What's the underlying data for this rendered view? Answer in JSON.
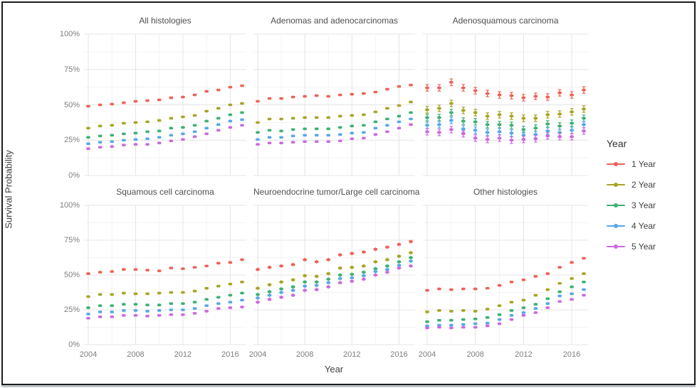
{
  "figure_type": "faceted survival probability pointrange plot",
  "chart_data": {
    "type": "scatter",
    "x": [
      2004,
      2005,
      2006,
      2007,
      2008,
      2009,
      2010,
      2011,
      2012,
      2013,
      2014,
      2015,
      2016,
      2017
    ],
    "xticks": [
      2004,
      2008,
      2012,
      2016
    ],
    "yticks": [
      0,
      25,
      50,
      75,
      100
    ],
    "ytick_labels": [
      "0%",
      "25%",
      "50%",
      "75%",
      "100%"
    ],
    "ylim": [
      0,
      100
    ],
    "xlabel": "Year",
    "ylabel": "Survival Probability",
    "legend_title": "Year",
    "legend_position": "right",
    "grid": true,
    "series_names": [
      "1 Year",
      "2 Year",
      "3 Year",
      "4 Year",
      "5 Year"
    ],
    "series_colors": [
      "#ee6257",
      "#a7a524",
      "#3cb172",
      "#56a8e9",
      "#cb6add"
    ],
    "panels": [
      {
        "title": "All histologies",
        "errorbar_pct": 0.7,
        "series": [
          [
            49,
            50,
            50.5,
            51.5,
            52.5,
            53,
            53.5,
            55,
            55.5,
            57,
            59.5,
            60.5,
            62.5,
            63.5
          ],
          [
            33.5,
            35,
            35.5,
            37,
            37.5,
            38,
            39,
            40.5,
            41.5,
            42.5,
            45.5,
            47.5,
            50,
            51
          ],
          [
            27,
            28,
            28.5,
            29.5,
            30,
            31,
            31.5,
            33.5,
            34,
            35.5,
            38.5,
            40.5,
            43,
            44.5
          ],
          [
            22.5,
            23.5,
            24,
            25,
            25.5,
            26,
            27,
            28.5,
            29.5,
            31,
            33.5,
            36,
            38.5,
            39.5
          ],
          [
            19,
            20,
            20.5,
            21.5,
            22,
            22,
            23,
            24.5,
            25.5,
            27.5,
            29.5,
            32,
            34,
            35.5
          ]
        ]
      },
      {
        "title": "Adenomas and adenocarcinomas",
        "errorbar_pct": 0.7,
        "series": [
          [
            52.5,
            54.5,
            54.5,
            55.5,
            56,
            56.5,
            56,
            57,
            57.5,
            58,
            59,
            61,
            63,
            64
          ],
          [
            37.5,
            40,
            40,
            40.5,
            41,
            41,
            41,
            42,
            42.5,
            43,
            45,
            47.5,
            49.5,
            52
          ],
          [
            30.5,
            32,
            31.5,
            32.5,
            33,
            33,
            33,
            34,
            35,
            35.5,
            38,
            40,
            42,
            44.5
          ],
          [
            25.5,
            27,
            27,
            28,
            28.5,
            28.5,
            28.5,
            29,
            30,
            30.5,
            33.5,
            35.5,
            38,
            40
          ],
          [
            22,
            23,
            23,
            23.5,
            24,
            24,
            24,
            24.5,
            26,
            26.5,
            29,
            31,
            33.5,
            36
          ]
        ]
      },
      {
        "title": "Adenosquamous carcinoma",
        "errorbar_pct": 2.3,
        "series": [
          [
            62,
            62,
            66,
            62,
            60,
            58,
            57,
            56.5,
            55,
            56,
            55.5,
            58.5,
            57,
            60.5
          ],
          [
            46.5,
            47.5,
            51,
            46,
            44.5,
            42,
            43,
            42,
            40.5,
            40.5,
            43,
            43.5,
            45,
            47
          ],
          [
            41,
            41,
            44.5,
            38.5,
            38,
            36,
            36,
            35.5,
            32.5,
            33.5,
            36.5,
            35,
            37,
            40.5
          ],
          [
            35.5,
            36,
            39,
            33,
            32,
            30.5,
            31,
            30,
            28.5,
            29,
            31.5,
            30.5,
            32,
            36
          ],
          [
            31,
            30.5,
            32.5,
            29.5,
            26.5,
            25.5,
            26.5,
            25,
            25.5,
            26,
            28,
            27.5,
            27.5,
            31.5
          ]
        ]
      },
      {
        "title": "Squamous cell carcinoma",
        "errorbar_pct": 0.9,
        "series": [
          [
            51,
            52,
            52.5,
            54,
            54,
            53.5,
            53,
            55,
            54.5,
            55.5,
            56.5,
            58.5,
            59,
            61
          ],
          [
            34.5,
            36,
            36,
            37,
            36.5,
            36.5,
            37,
            37.5,
            37.5,
            38.5,
            40.5,
            42,
            43.5,
            45
          ],
          [
            26.5,
            28,
            28,
            29,
            29,
            28.5,
            28.5,
            29.5,
            29.5,
            30.5,
            32.5,
            34,
            35.5,
            37
          ],
          [
            22,
            23.5,
            23.5,
            24.5,
            24.5,
            24,
            24.5,
            25,
            25,
            26,
            28,
            29.5,
            30.5,
            32
          ],
          [
            19,
            20,
            20,
            21,
            21,
            20.5,
            21,
            21.5,
            21.5,
            22.5,
            24,
            26,
            26.5,
            27
          ]
        ]
      },
      {
        "title": "Neuroendocrine tumor/Large cell carcinoma",
        "errorbar_pct": 1.3,
        "series": [
          [
            54,
            55.5,
            56.5,
            57.5,
            61,
            59.5,
            61,
            64.5,
            65.5,
            66.5,
            68.5,
            70,
            72,
            74
          ],
          [
            40.5,
            43,
            45,
            46.5,
            49.5,
            49,
            51,
            55,
            55.5,
            56.5,
            59.5,
            61,
            63.5,
            66
          ],
          [
            36,
            38,
            40,
            41.5,
            45,
            45,
            47,
            50,
            50.5,
            52,
            54.5,
            56.5,
            59.5,
            62.5
          ],
          [
            33.5,
            35.5,
            37.5,
            39,
            42,
            42.5,
            44.5,
            47.5,
            48,
            49.5,
            52.5,
            54,
            57,
            60
          ],
          [
            30.5,
            32.5,
            34,
            35.5,
            39,
            39.5,
            41.5,
            44.5,
            45.5,
            47,
            50,
            52,
            55,
            56.5
          ]
        ]
      },
      {
        "title": "Other histologies",
        "errorbar_pct": 0.9,
        "series": [
          [
            39,
            40,
            39.5,
            40,
            40,
            40.5,
            42.5,
            45,
            46.5,
            49,
            51,
            55.5,
            59,
            62
          ],
          [
            23.5,
            24.5,
            24,
            24.5,
            24,
            25.5,
            28,
            30.5,
            32,
            35.5,
            39.5,
            44,
            47.5,
            51
          ],
          [
            16.5,
            17.5,
            17.5,
            18,
            18.5,
            19.5,
            21.5,
            24.5,
            26.5,
            29,
            33,
            38,
            41.5,
            45
          ],
          [
            13.5,
            14,
            14,
            14.5,
            15,
            15.5,
            18,
            21,
            23,
            26,
            29.5,
            35,
            36.5,
            39.5
          ],
          [
            12,
            12.5,
            12,
            12.5,
            12.5,
            13.5,
            15,
            18,
            21,
            23,
            26.5,
            31,
            32.5,
            35.5
          ]
        ]
      }
    ]
  }
}
